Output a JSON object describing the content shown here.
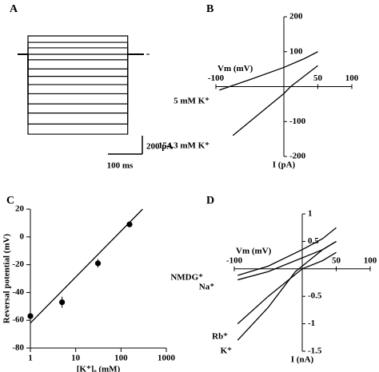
{
  "chart_data": [
    {
      "type": "traces",
      "label": "A",
      "values": [
        200,
        130,
        70,
        0,
        -60,
        -160,
        -240,
        -330,
        -430,
        -540,
        -640,
        -760,
        -870
      ],
      "step_duration": 290,
      "scale_y": {
        "value": 200,
        "label": "200 pA"
      },
      "scale_x": {
        "value": 100,
        "label": "100 ms"
      }
    },
    {
      "type": "line",
      "label": "B",
      "xlabel": "Vm (mV)",
      "ylabel": "I (pA)",
      "xlim": [
        -100,
        100
      ],
      "ylim": [
        -200,
        200
      ],
      "xticks": [
        -100,
        50,
        100
      ],
      "yticks": [
        200,
        100,
        -100,
        -200
      ],
      "series": [
        {
          "name": "5 mM K⁺",
          "color": "#000000",
          "x": [
            -95,
            -80,
            -50,
            0,
            30,
            50
          ],
          "values": [
            -10,
            0,
            20,
            55,
            80,
            100
          ]
        },
        {
          "name": "154.3 mM K⁺",
          "color": "#000000",
          "x": [
            -75,
            -50,
            -25,
            0,
            10,
            30,
            50
          ],
          "values": [
            -140,
            -100,
            -60,
            -20,
            0,
            30,
            60
          ]
        }
      ]
    },
    {
      "type": "scatter",
      "label": "C",
      "xlabel": "[K⁺]ₒ (mM)",
      "ylabel": "Reversal potential (mV)",
      "log_x": true,
      "xlim": [
        1,
        1000
      ],
      "ylim": [
        -80,
        20
      ],
      "xticks": [
        1,
        10,
        100,
        1000
      ],
      "yticks": [
        20,
        0,
        -20,
        -40,
        -60,
        -80
      ],
      "x": [
        1,
        5,
        31,
        154.3
      ],
      "values": [
        -57,
        -47,
        -19,
        9
      ],
      "errors": [
        4,
        4,
        3,
        2
      ],
      "fit": {
        "x": [
          1,
          300
        ],
        "values": [
          -62,
          20
        ]
      }
    },
    {
      "type": "line",
      "label": "D",
      "xlabel": "Vm (mV)",
      "ylabel": "I (nA)",
      "xlim": [
        -100,
        100
      ],
      "ylim": [
        -1.5,
        1
      ],
      "xticks": [
        -100,
        50,
        100
      ],
      "yticks": [
        1,
        0.5,
        -0.5,
        -1,
        -1.5
      ],
      "series": [
        {
          "name": "NMDG⁺",
          "color": "#000000",
          "x": [
            -95,
            -50,
            0,
            30,
            50
          ],
          "values": [
            -0.12,
            0.05,
            0.35,
            0.55,
            0.75
          ]
        },
        {
          "name": "Na⁺",
          "color": "#000000",
          "x": [
            -95,
            -50,
            0,
            30,
            50
          ],
          "values": [
            -0.2,
            -0.05,
            0.2,
            0.35,
            0.5
          ]
        },
        {
          "name": "Rb⁺",
          "color": "#000000",
          "x": [
            -95,
            -50,
            0,
            30,
            50
          ],
          "values": [
            -1.0,
            -0.5,
            0.0,
            0.15,
            0.3
          ]
        },
        {
          "name": "K⁺",
          "color": "#000000",
          "x": [
            -95,
            -50,
            -10,
            0,
            30,
            50
          ],
          "values": [
            -1.3,
            -0.7,
            -0.05,
            0.05,
            0.35,
            0.5
          ]
        }
      ]
    }
  ]
}
